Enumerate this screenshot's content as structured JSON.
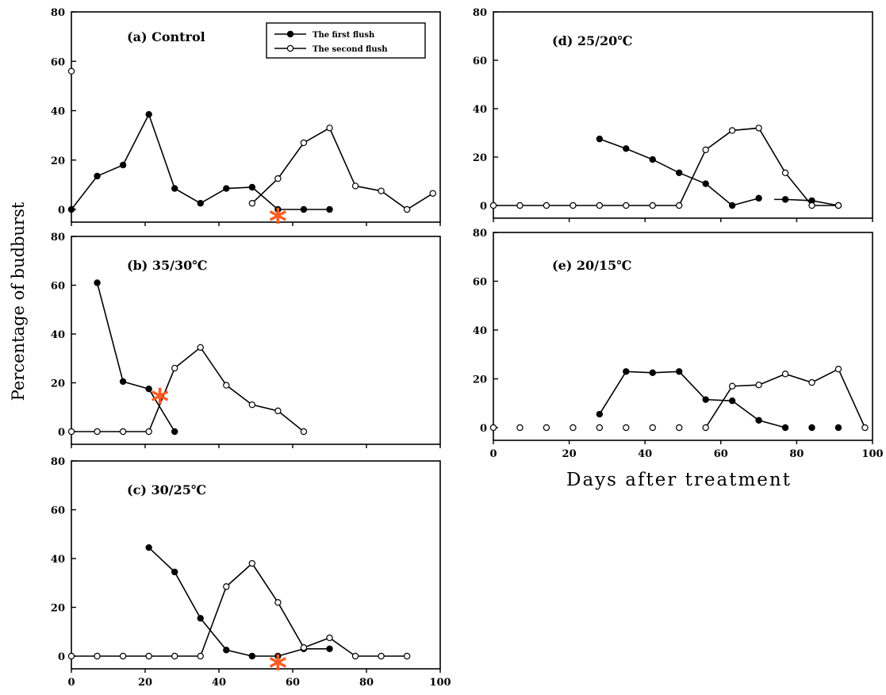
{
  "chart_data": {
    "type": "line",
    "ylabel": "Percentage of budburst",
    "xlabel": "Days after treatment",
    "legend": {
      "placement": "top-right of panel (a)",
      "entries": [
        {
          "name": "The first flush",
          "marker": "filled-circle"
        },
        {
          "name": "The second flush",
          "marker": "open-circle"
        }
      ]
    },
    "panels": [
      {
        "id": "a",
        "title": "(a) Control",
        "xlim": [
          0,
          100
        ],
        "ylim": [
          0,
          80
        ],
        "yticks": [
          "0",
          "20",
          "40",
          "60",
          "80"
        ],
        "xticks": [],
        "series": [
          {
            "name": "The first flush",
            "points": [
              [
                0,
                0
              ],
              [
                7,
                13.5
              ],
              [
                14,
                18
              ],
              [
                21,
                38.5
              ],
              [
                28,
                8.5
              ],
              [
                35,
                2.5
              ],
              [
                42,
                8.5
              ],
              [
                49,
                9
              ],
              [
                56,
                0
              ],
              [
                63,
                0
              ],
              [
                70,
                0
              ]
            ]
          },
          {
            "name": "The second flush",
            "points": [
              [
                0,
                56
              ],
              [
                49,
                2.5
              ],
              [
                56,
                12.5
              ],
              [
                63,
                27
              ],
              [
                70,
                33
              ],
              [
                77,
                9.5
              ],
              [
                84,
                7.5
              ],
              [
                91,
                0
              ],
              [
                98,
                6.5
              ]
            ]
          }
        ],
        "asterisk_day": 56
      },
      {
        "id": "b",
        "title": "(b) 35/30℃",
        "xlim": [
          0,
          100
        ],
        "ylim": [
          0,
          80
        ],
        "yticks": [
          "0",
          "20",
          "40",
          "60",
          "80"
        ],
        "xticks": [],
        "series": [
          {
            "name": "The first flush",
            "points": [
              [
                7,
                61
              ],
              [
                14,
                20.5
              ],
              [
                21,
                17.5
              ],
              [
                28,
                0
              ]
            ]
          },
          {
            "name": "The second flush",
            "points": [
              [
                0,
                0
              ],
              [
                7,
                0
              ],
              [
                14,
                0
              ],
              [
                21,
                0
              ],
              [
                28,
                26
              ],
              [
                35,
                34.5
              ],
              [
                42,
                19
              ],
              [
                49,
                11
              ],
              [
                56,
                8.5
              ],
              [
                63,
                0
              ]
            ]
          }
        ],
        "asterisk_day": 24
      },
      {
        "id": "c",
        "title": "(c) 30/25℃",
        "xlim": [
          0,
          100
        ],
        "ylim": [
          0,
          80
        ],
        "yticks": [
          "0",
          "20",
          "40",
          "60",
          "80"
        ],
        "xticks": [
          "0",
          "20",
          "40",
          "60",
          "80",
          "100"
        ],
        "series": [
          {
            "name": "The first flush",
            "points": [
              [
                21,
                44.5
              ],
              [
                28,
                34.5
              ],
              [
                35,
                15.5
              ],
              [
                42,
                2.5
              ],
              [
                49,
                0
              ],
              [
                56,
                0
              ],
              [
                63,
                3
              ],
              [
                70,
                3
              ]
            ]
          },
          {
            "name": "The second flush",
            "points": [
              [
                0,
                0
              ],
              [
                7,
                0
              ],
              [
                14,
                0
              ],
              [
                21,
                0
              ],
              [
                28,
                0
              ],
              [
                35,
                0
              ],
              [
                42,
                28.5
              ],
              [
                49,
                38
              ],
              [
                56,
                22
              ],
              [
                63,
                3.5
              ],
              [
                70,
                7.5
              ],
              [
                77,
                0
              ],
              [
                84,
                0
              ],
              [
                91,
                0
              ]
            ]
          }
        ],
        "asterisk_day": 56
      },
      {
        "id": "d",
        "title": "(d) 25/20℃",
        "xlim": [
          0,
          100
        ],
        "ylim": [
          0,
          80
        ],
        "yticks": [
          "0",
          "20",
          "40",
          "60",
          "80"
        ],
        "xticks": [],
        "series": [
          {
            "name": "The first flush",
            "points": [
              [
                28,
                27.5
              ],
              [
                35,
                23.5
              ],
              [
                42,
                19
              ],
              [
                49,
                13.5
              ],
              [
                56,
                9
              ],
              [
                63,
                0
              ],
              [
                70,
                3
              ],
              [
                77,
                2.5
              ],
              [
                84,
                2
              ],
              [
                91,
                0
              ]
            ]
          },
          {
            "name": "The second flush",
            "points": [
              [
                0,
                0
              ],
              [
                7,
                0
              ],
              [
                14,
                0
              ],
              [
                21,
                0
              ],
              [
                28,
                0
              ],
              [
                35,
                0
              ],
              [
                42,
                0
              ],
              [
                49,
                0
              ],
              [
                56,
                23
              ],
              [
                63,
                31
              ],
              [
                70,
                32
              ],
              [
                77,
                13.5
              ],
              [
                84,
                0
              ],
              [
                91,
                0
              ]
            ]
          }
        ]
      },
      {
        "id": "e",
        "title": "(e) 20/15℃",
        "xlim": [
          0,
          100
        ],
        "ylim": [
          0,
          80
        ],
        "yticks": [
          "0",
          "20",
          "40",
          "60",
          "80"
        ],
        "xticks": [
          "0",
          "20",
          "40",
          "60",
          "80",
          "100"
        ],
        "series": [
          {
            "name": "The first flush",
            "points": [
              [
                28,
                5.5
              ],
              [
                35,
                23
              ],
              [
                42,
                22.5
              ],
              [
                49,
                23
              ],
              [
                56,
                11.5
              ],
              [
                63,
                11
              ],
              [
                70,
                3
              ],
              [
                77,
                0
              ],
              [
                84,
                0
              ],
              [
                91,
                0
              ]
            ]
          },
          {
            "name": "The second flush",
            "points": [
              [
                0,
                0
              ],
              [
                7,
                0
              ],
              [
                14,
                0
              ],
              [
                21,
                0
              ],
              [
                28,
                0
              ],
              [
                35,
                0
              ],
              [
                42,
                0
              ],
              [
                49,
                0
              ],
              [
                56,
                0
              ],
              [
                63,
                17
              ],
              [
                70,
                17.5
              ],
              [
                77,
                22
              ],
              [
                84,
                18.5
              ],
              [
                91,
                24
              ],
              [
                98,
                0
              ]
            ]
          }
        ]
      }
    ]
  }
}
